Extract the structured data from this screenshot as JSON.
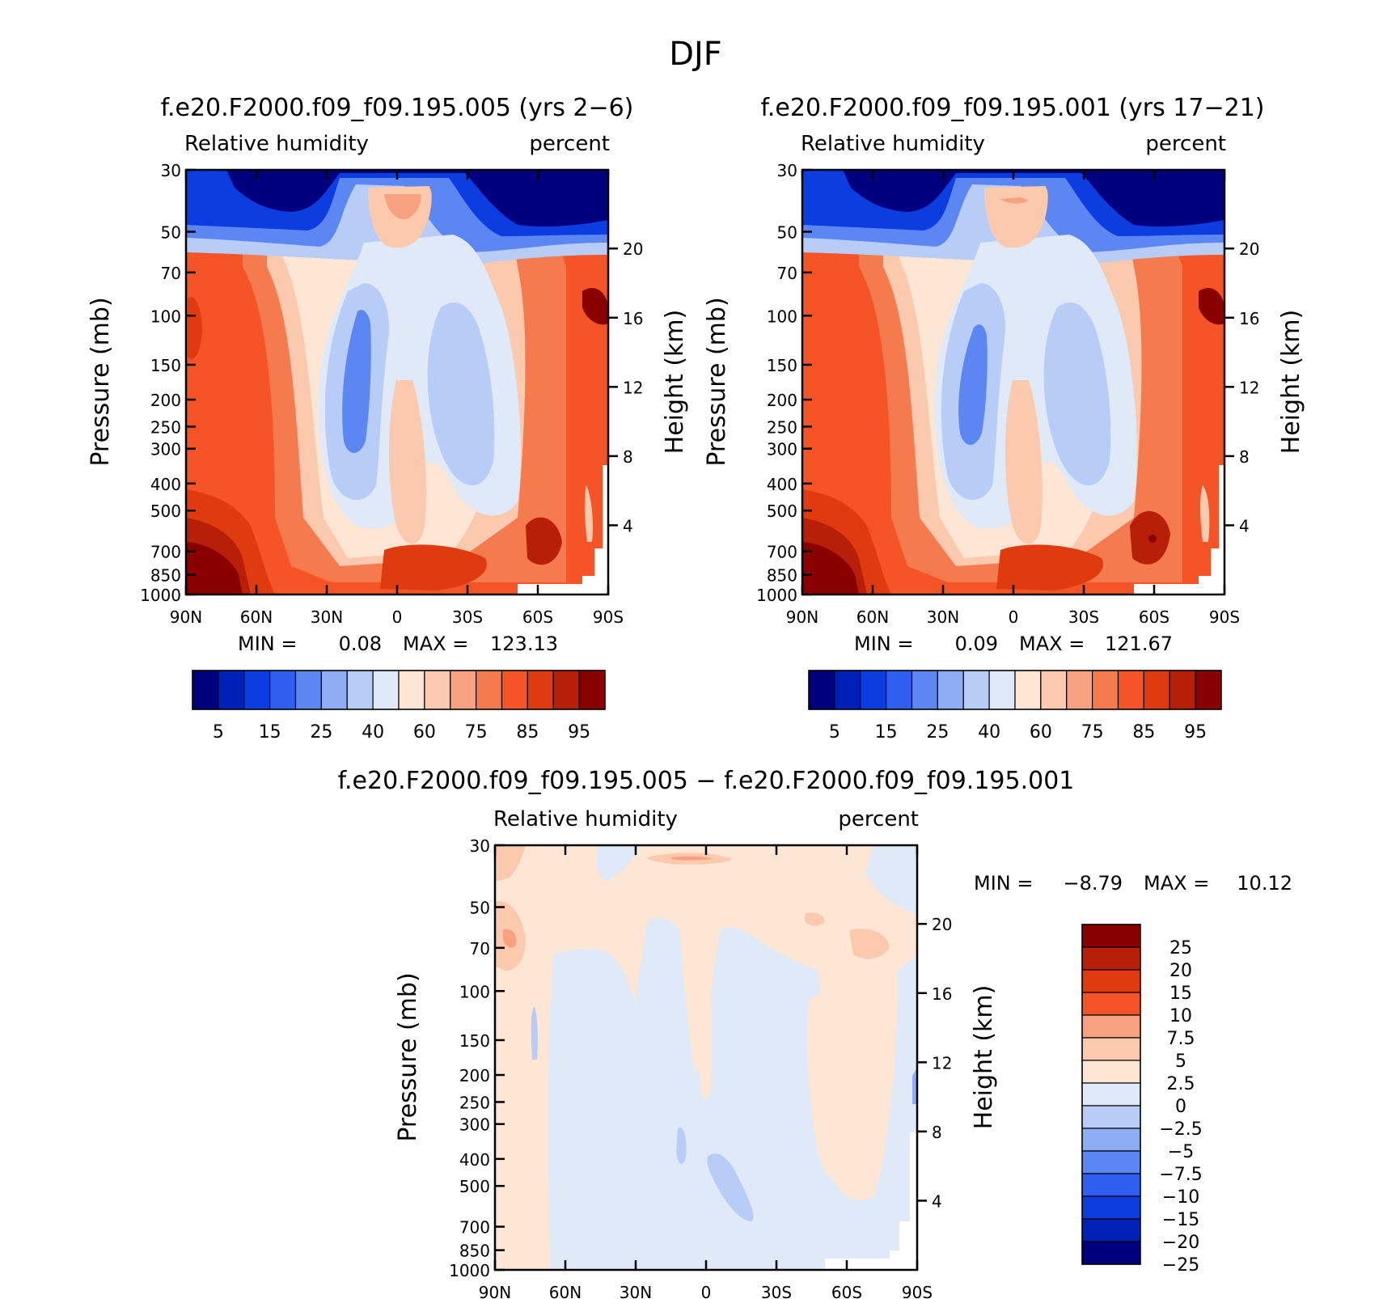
{
  "figure": {
    "title": "DJF"
  },
  "chart_data": [
    {
      "type": "heatmap",
      "id": "p1",
      "title": "f.e20.F2000.f09_f09.195.005 (yrs 2−6)",
      "left_label": "Relative humidity",
      "right_label": "percent",
      "ylabel": "Pressure (mb)",
      "ylabel_right": "Height (km)",
      "y_scale": "log",
      "ylim": [
        1000,
        30
      ],
      "x_ticks": [
        "90N",
        "60N",
        "30N",
        "0",
        "30S",
        "60S",
        "90S"
      ],
      "y_ticks": [
        "30",
        "50",
        "70",
        "100",
        "150",
        "200",
        "250",
        "300",
        "400",
        "500",
        "700",
        "850",
        "1000"
      ],
      "height_ticks": [
        "20",
        "16",
        "12",
        "8",
        "4"
      ],
      "stats": {
        "min_label": "MIN =",
        "min": "0.08",
        "max_label": "MAX =",
        "max": "123.13"
      },
      "colorbar": {
        "orientation": "horizontal",
        "levels": [
          "5",
          "10",
          "15",
          "20",
          "25",
          "30",
          "35",
          "40",
          "50",
          "60",
          "65",
          "70",
          "75",
          "80",
          "85",
          "90",
          "95"
        ],
        "labels": [
          "5",
          "15",
          "25",
          "40",
          "60",
          "75",
          "85",
          "95"
        ],
        "colors": [
          "#00007f",
          "#0020b8",
          "#0b3de0",
          "#2f5ef0",
          "#5c86f2",
          "#8fadf5",
          "#b7ccf7",
          "#dfe9f8",
          "#fde6d4",
          "#fbc9ae",
          "#f7a180",
          "#f57b4e",
          "#f45426",
          "#e03a10",
          "#b81f08",
          "#8a0000"
        ]
      }
    },
    {
      "type": "heatmap",
      "id": "p2",
      "title": "f.e20.F2000.f09_f09.195.001 (yrs 17−21)",
      "left_label": "Relative humidity",
      "right_label": "percent",
      "ylabel": "Pressure (mb)",
      "ylabel_right": "Height (km)",
      "y_scale": "log",
      "ylim": [
        1000,
        30
      ],
      "x_ticks": [
        "90N",
        "60N",
        "30N",
        "0",
        "30S",
        "60S",
        "90S"
      ],
      "y_ticks": [
        "30",
        "50",
        "70",
        "100",
        "150",
        "200",
        "250",
        "300",
        "400",
        "500",
        "700",
        "850",
        "1000"
      ],
      "height_ticks": [
        "20",
        "16",
        "12",
        "8",
        "4"
      ],
      "stats": {
        "min_label": "MIN =",
        "min": "0.09",
        "max_label": "MAX =",
        "max": "121.67"
      },
      "colorbar": {
        "orientation": "horizontal",
        "levels": [
          "5",
          "10",
          "15",
          "20",
          "25",
          "30",
          "35",
          "40",
          "50",
          "60",
          "65",
          "70",
          "75",
          "80",
          "85",
          "90",
          "95"
        ],
        "labels": [
          "5",
          "15",
          "25",
          "40",
          "60",
          "75",
          "85",
          "95"
        ],
        "colors": [
          "#00007f",
          "#0020b8",
          "#0b3de0",
          "#2f5ef0",
          "#5c86f2",
          "#8fadf5",
          "#b7ccf7",
          "#dfe9f8",
          "#fde6d4",
          "#fbc9ae",
          "#f7a180",
          "#f57b4e",
          "#f45426",
          "#e03a10",
          "#b81f08",
          "#8a0000"
        ]
      }
    },
    {
      "type": "heatmap",
      "id": "p3",
      "title": "f.e20.F2000.f09_f09.195.005 − f.e20.F2000.f09_f09.195.001",
      "left_label": "Relative humidity",
      "right_label": "percent",
      "ylabel": "Pressure (mb)",
      "ylabel_right": "Height (km)",
      "y_scale": "log",
      "ylim": [
        1000,
        30
      ],
      "x_ticks": [
        "90N",
        "60N",
        "30N",
        "0",
        "30S",
        "60S",
        "90S"
      ],
      "y_ticks": [
        "30",
        "50",
        "70",
        "100",
        "150",
        "200",
        "250",
        "300",
        "400",
        "500",
        "700",
        "850",
        "1000"
      ],
      "height_ticks": [
        "20",
        "16",
        "12",
        "8",
        "4"
      ],
      "stats": {
        "min_label": "MIN =",
        "min": "−8.79",
        "max_label": "MAX =",
        "max": "10.12"
      },
      "colorbar": {
        "orientation": "vertical",
        "labels": [
          "25",
          "20",
          "15",
          "10",
          "7.5",
          "5",
          "2.5",
          "0",
          "−2.5",
          "−5",
          "−7.5",
          "−10",
          "−15",
          "−20",
          "−25"
        ],
        "colors": [
          "#8a0000",
          "#b81f08",
          "#e03a10",
          "#f45426",
          "#f7a180",
          "#fbc9ae",
          "#fde6d4",
          "#dfe9f8",
          "#b7ccf7",
          "#8fadf5",
          "#5c86f2",
          "#2f5ef0",
          "#0b3de0",
          "#0020b8",
          "#00007f"
        ]
      }
    }
  ]
}
